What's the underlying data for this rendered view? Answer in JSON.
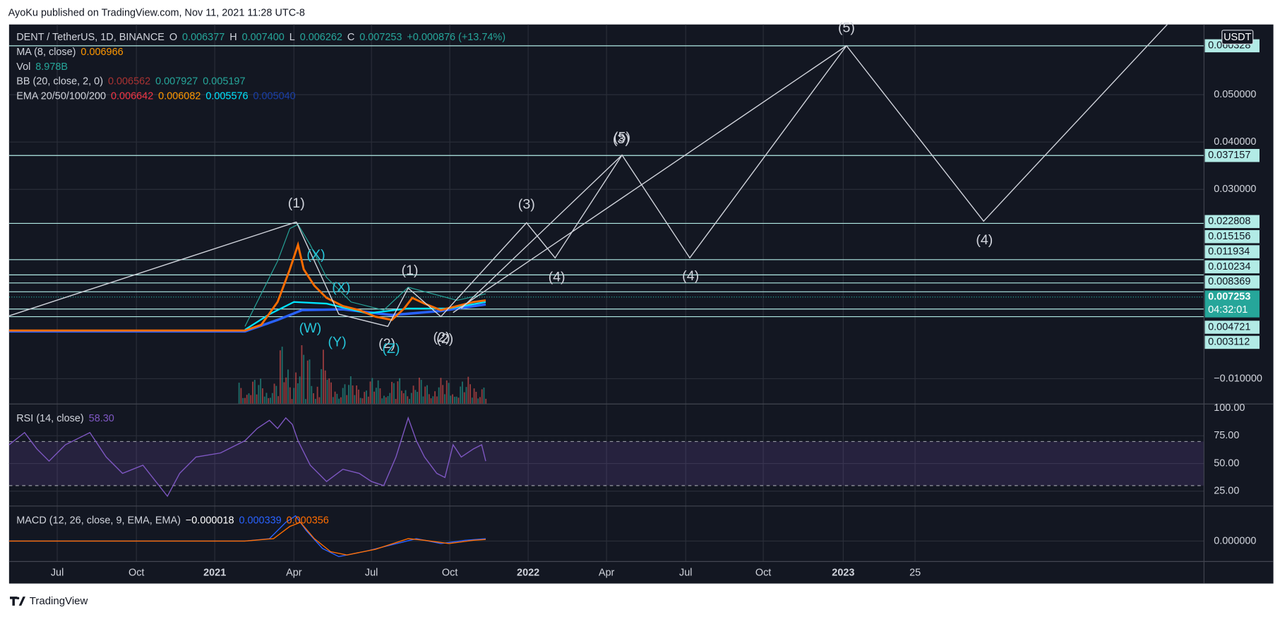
{
  "header": {
    "publisher": "AyoKu published on TradingView.com, Nov 11, 2021 11:28 UTC-8"
  },
  "chart_data": {
    "type": "candlestick",
    "symbol": "DENT / TetherUS, 1D, BINANCE",
    "ohlc": [
      {
        "label": "O",
        "value": "0.006377"
      },
      {
        "label": "H",
        "value": "0.007400"
      },
      {
        "label": "L",
        "value": "0.006262"
      },
      {
        "label": "C",
        "value": "0.007253"
      }
    ],
    "change": "+0.000876 (+13.74%)",
    "ohlc_color": "#26a69a",
    "indicators": [
      {
        "name": "MA (8, close)",
        "values": [
          {
            "text": "0.006966",
            "color": "#ff9800"
          }
        ]
      },
      {
        "name": "Vol",
        "values": [
          {
            "text": "8.978B",
            "color": "#26a69a"
          }
        ]
      },
      {
        "name": "BB (20, close, 2, 0)",
        "values": [
          {
            "text": "0.006562",
            "color": "#a83232"
          },
          {
            "text": "0.007927",
            "color": "#26a69a"
          },
          {
            "text": "0.005197",
            "color": "#26a69a"
          }
        ]
      },
      {
        "name": "EMA 20/50/100/200",
        "values": [
          {
            "text": "0.006642",
            "color": "#f23645"
          },
          {
            "text": "0.006082",
            "color": "#ff9800"
          },
          {
            "text": "0.005576",
            "color": "#00e5ff"
          },
          {
            "text": "0.005040",
            "color": "#1a3fa8"
          }
        ]
      }
    ],
    "currency": "USDT",
    "ylim": [
      -0.01534,
      0.06483
    ],
    "yticks": [
      {
        "value": 0.05,
        "label": "0.050000"
      },
      {
        "value": 0.04,
        "label": "0.040000"
      },
      {
        "value": 0.03,
        "label": "0.030000"
      },
      {
        "value": -0.01,
        "label": "−0.010000"
      }
    ],
    "levels": [
      0.060328,
      0.037157,
      0.022808,
      0.015156,
      0.011934,
      0.010234,
      0.008369,
      0.004721,
      0.003112
    ],
    "level_color": "#b2ebe6",
    "last_price": 0.007253,
    "last_price_color": "#26a69a",
    "countdown": "04:32:01",
    "xticks": [
      "Jul",
      "Oct",
      "2021",
      "Apr",
      "Jul",
      "Oct",
      "2022",
      "Apr",
      "Jul",
      "Oct",
      "2023",
      "25"
    ],
    "annotations": [
      "(1)",
      "(3)",
      "(4)",
      "(3)",
      "(5)",
      "(4)",
      "(5)",
      "(4)",
      "(1)",
      "(2)",
      "(2)",
      "(2)",
      "(X)",
      "(X)",
      "(W)",
      "(Y)",
      "(Z)"
    ],
    "grid": true,
    "rsi": {
      "title": "RSI (14, close)",
      "value": "58.30",
      "color": "#7e57c2",
      "ylim": [
        11.6,
        103.7
      ],
      "yticks": [
        {
          "value": 100,
          "label": "100.00"
        },
        {
          "value": 75,
          "label": "75.00"
        },
        {
          "value": 50,
          "label": "50.00"
        },
        {
          "value": 25,
          "label": "25.00"
        }
      ]
    },
    "macd": {
      "title": "MACD (12, 26, close, 9, EMA, EMA)",
      "values": [
        {
          "text": "−0.000018",
          "color": "#ffffff"
        },
        {
          "text": "0.000339",
          "color": "#2962ff"
        },
        {
          "text": "0.000356",
          "color": "#ff6d00"
        }
      ],
      "yticks": [
        {
          "value": 0,
          "label": "0.000000"
        }
      ]
    }
  },
  "footer": {
    "brand": "TradingView"
  }
}
